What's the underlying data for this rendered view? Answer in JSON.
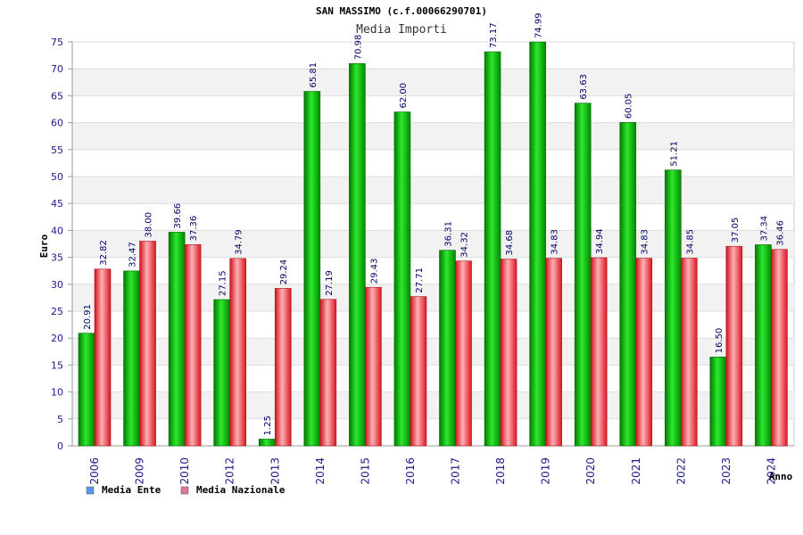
{
  "chart_data": {
    "type": "bar",
    "title": "SAN MASSIMO (c.f.00066290701)",
    "subtitle": "Media Importi",
    "xlabel": "Anno",
    "ylabel": "Euro",
    "ylim": [
      0,
      75
    ],
    "ytick_step": 5,
    "grid": true,
    "legend_position": "bottom-left",
    "categories": [
      "2006",
      "2009",
      "2010",
      "2012",
      "2013",
      "2014",
      "2015",
      "2016",
      "2017",
      "2018",
      "2019",
      "2020",
      "2021",
      "2022",
      "2023",
      "2024"
    ],
    "series": [
      {
        "name": "Media Ente",
        "color": "#00a000",
        "legend_color": "#5599ee",
        "values": [
          20.91,
          32.47,
          39.66,
          27.15,
          1.25,
          65.81,
          70.98,
          62.0,
          36.31,
          73.17,
          74.99,
          63.63,
          60.05,
          51.21,
          16.5,
          37.34
        ]
      },
      {
        "name": "Media Nazionale",
        "color": "#e0202a",
        "legend_color": "#dd7799",
        "values": [
          32.82,
          38.0,
          37.36,
          34.79,
          29.24,
          27.19,
          29.43,
          27.71,
          34.32,
          34.68,
          34.83,
          34.94,
          34.83,
          34.85,
          37.05,
          36.46
        ]
      }
    ]
  }
}
